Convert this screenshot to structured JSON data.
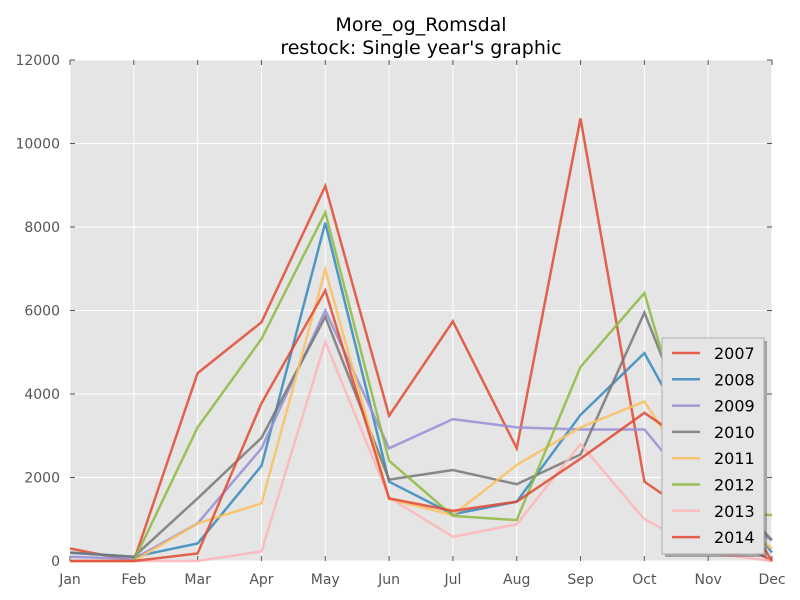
{
  "chart_data": {
    "type": "line",
    "title": "More_og_Romsdal",
    "subtitle": "restock: Single year's graphic",
    "xlabel": "",
    "ylabel": "",
    "categories": [
      "Jan",
      "Feb",
      "Mar",
      "Apr",
      "May",
      "Jun",
      "Jul",
      "Aug",
      "Sep",
      "Oct",
      "Nov",
      "Dec"
    ],
    "ylim": [
      0,
      12000
    ],
    "yticks": [
      0,
      2000,
      4000,
      6000,
      8000,
      10000,
      12000
    ],
    "grid": true,
    "legend_position": "bottom-right",
    "series": [
      {
        "name": "2007",
        "color": "#e24a33",
        "values": [
          300,
          0,
          4500,
          5720,
          8980,
          3480,
          5740,
          2700,
          10600,
          1900,
          850,
          0
        ]
      },
      {
        "name": "2008",
        "color": "#348abd",
        "values": [
          200,
          100,
          420,
          2280,
          8100,
          1900,
          1120,
          1420,
          3500,
          4980,
          2200,
          200
        ]
      },
      {
        "name": "2009",
        "color": "#988ed5",
        "values": [
          100,
          50,
          900,
          2700,
          6000,
          2700,
          3400,
          3200,
          3150,
          3150,
          1300,
          500
        ]
      },
      {
        "name": "2010",
        "color": "#777777",
        "values": [
          200,
          100,
          1500,
          2950,
          5850,
          1950,
          2180,
          1840,
          2550,
          5950,
          2100,
          500
        ]
      },
      {
        "name": "2011",
        "color": "#fbc15e",
        "values": [
          0,
          0,
          900,
          1380,
          6980,
          1480,
          1100,
          2300,
          3200,
          3820,
          1500,
          300
        ]
      },
      {
        "name": "2012",
        "color": "#8eba42",
        "values": [
          0,
          0,
          3200,
          5320,
          8350,
          2400,
          1080,
          980,
          4650,
          6420,
          1200,
          1100
        ]
      },
      {
        "name": "2013",
        "color": "#ffb5b8",
        "values": [
          0,
          0,
          0,
          230,
          5250,
          1520,
          580,
          880,
          2800,
          1000,
          200,
          0
        ]
      },
      {
        "name": "2014",
        "color": "#e24a33",
        "values": [
          0,
          0,
          180,
          3780,
          6480,
          1500,
          1200,
          1420,
          2450,
          3550,
          2500,
          0
        ]
      }
    ]
  }
}
